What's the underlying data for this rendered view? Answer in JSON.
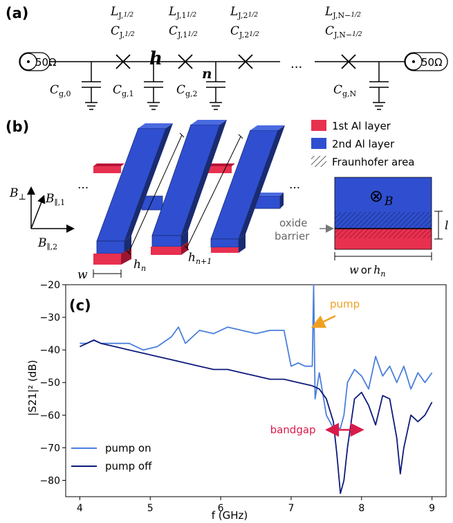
{
  "panels": {
    "a": {
      "label": "(a)",
      "port_left": "50Ω",
      "port_right": "50Ω",
      "ellipsis": "...",
      "junction_labels": [
        {
          "L": "L",
          "Lsub": "J,",
          "Lfrac": "1/2",
          "C": "C",
          "Csub": "J,",
          "Cfrac": "1/2"
        },
        {
          "L": "L",
          "Lsub": "J,1",
          "Lfrac": "1/2",
          "C": "C",
          "Csub": "J,1",
          "Cfrac": "1/2"
        },
        {
          "L": "L",
          "Lsub": "J,2",
          "Lfrac": "1/2",
          "C": "C",
          "Csub": "J,2",
          "Cfrac": "1/2"
        },
        {
          "L": "L",
          "Lsub": "J,N−",
          "Lfrac": "1/2",
          "C": "C",
          "Csub": "J,N−",
          "Cfrac": "1/2"
        }
      ],
      "ground_cap_labels": [
        {
          "C": "C",
          "sub": "g,0"
        },
        {
          "C": "C",
          "sub": "g,1"
        },
        {
          "C": "C",
          "sub": "g,2"
        },
        {
          "C": "C",
          "sub": "g,N"
        }
      ],
      "node_h": "h",
      "node_n": "n"
    },
    "b": {
      "label": "(b)",
      "legend": [
        {
          "text": "1st  Al layer",
          "color": "#e8304f"
        },
        {
          "text": "2nd Al layer",
          "color": "#2f4fd0"
        },
        {
          "text": "Fraunhofer area",
          "color": "hatch"
        }
      ],
      "axes": {
        "b_perp": "B",
        "b_perp_sub": "⊥",
        "b_par1": "B",
        "b_par1_sub": "∥,1",
        "b_par2": "B",
        "b_par2_sub": "∥,2"
      },
      "dims": {
        "w": "w",
        "hn": "h",
        "hn_sub": "n",
        "hn1": "h",
        "hn1_sub": "n+1"
      },
      "ellipsis": "...",
      "inset": {
        "field": "⊗",
        "field_sym": "B",
        "oxide_line1": "oxide",
        "oxide_line2": "barrier",
        "l": "l",
        "width_w": "w",
        "width_or": "or",
        "width_h": "h",
        "width_h_sub": "n"
      }
    },
    "c": {
      "label": "(c)"
    }
  },
  "chart_data": {
    "type": "line",
    "xlabel": "f (GHz)",
    "ylabel": "|S21|² (dB)",
    "xlim": [
      3.8,
      9.2
    ],
    "ylim": [
      -85,
      -20
    ],
    "xticks": [
      4,
      5,
      6,
      7,
      8,
      9
    ],
    "yticks": [
      -20,
      -30,
      -40,
      -50,
      -60,
      -70,
      -80
    ],
    "grid": false,
    "legend_position": "bottom-left",
    "annotations": [
      {
        "text": "pump",
        "x": 7.55,
        "y": -27,
        "color": "#f0a020",
        "arrow_to": [
          7.35,
          -32.5
        ]
      },
      {
        "text": "bandgap",
        "x": 7.35,
        "y": -64.5,
        "color": "#d81b4a",
        "span": [
          7.6,
          7.92
        ],
        "at_y": -64.5
      }
    ],
    "series": [
      {
        "name": "pump on",
        "color": "#4a7fdc",
        "x": [
          4.0,
          4.1,
          4.2,
          4.3,
          4.5,
          4.7,
          4.9,
          5.1,
          5.3,
          5.4,
          5.5,
          5.7,
          5.9,
          6.1,
          6.3,
          6.5,
          6.7,
          6.9,
          7.0,
          7.1,
          7.2,
          7.3,
          7.32,
          7.34,
          7.4,
          7.5,
          7.6,
          7.7,
          7.75,
          7.8,
          7.9,
          8.0,
          8.1,
          8.2,
          8.3,
          8.4,
          8.5,
          8.6,
          8.7,
          8.8,
          8.9,
          9.0
        ],
        "y": [
          -38,
          -38,
          -37,
          -38,
          -38,
          -38,
          -40,
          -39,
          -36,
          -33,
          -38,
          -34,
          -35,
          -33,
          -34,
          -35,
          -34,
          -34,
          -45,
          -44,
          -45,
          -45,
          -20,
          -55,
          -47,
          -60,
          -64,
          -64,
          -60,
          -50,
          -46,
          -48,
          -52,
          -42,
          -48,
          -45,
          -50,
          -45,
          -52,
          -47,
          -50,
          -47
        ]
      },
      {
        "name": "pump off",
        "color": "#0d1a7a",
        "x": [
          4.0,
          4.1,
          4.2,
          4.3,
          4.5,
          4.7,
          4.9,
          5.1,
          5.3,
          5.5,
          5.7,
          5.9,
          6.1,
          6.3,
          6.5,
          6.7,
          6.9,
          7.1,
          7.3,
          7.4,
          7.5,
          7.6,
          7.65,
          7.7,
          7.75,
          7.8,
          7.9,
          8.0,
          8.1,
          8.2,
          8.3,
          8.4,
          8.5,
          8.55,
          8.6,
          8.7,
          8.8,
          8.9,
          9.0
        ],
        "y": [
          -39,
          -38,
          -37,
          -38,
          -39,
          -40,
          -41,
          -42,
          -43,
          -44,
          -45,
          -46,
          -46,
          -47,
          -48,
          -49,
          -49,
          -50,
          -51,
          -52,
          -55,
          -62,
          -72,
          -84,
          -80,
          -70,
          -55,
          -53,
          -57,
          -63,
          -54,
          -55,
          -67,
          -78,
          -70,
          -60,
          -62,
          -60,
          -56
        ]
      }
    ]
  }
}
